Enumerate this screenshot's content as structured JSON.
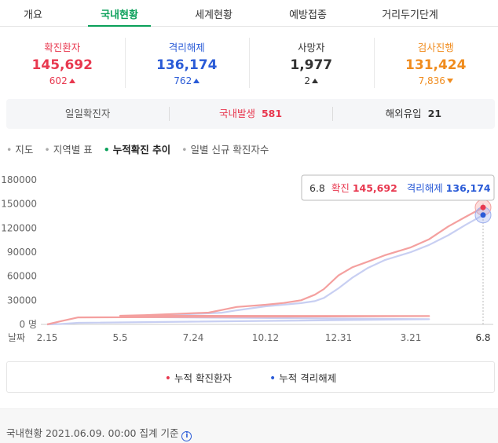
{
  "tabs": [
    {
      "label": "개요",
      "active": false
    },
    {
      "label": "국내현황",
      "active": true
    },
    {
      "label": "세계현황",
      "active": false
    },
    {
      "label": "예방접종",
      "active": false
    },
    {
      "label": "거리두기단계",
      "active": false
    }
  ],
  "stats": [
    {
      "label": "확진환자",
      "value": "145,692",
      "delta": "602",
      "direction": "up",
      "color": "#e8384f"
    },
    {
      "label": "격리해제",
      "value": "136,174",
      "delta": "762",
      "direction": "up",
      "color": "#2a5bd7"
    },
    {
      "label": "사망자",
      "value": "1,977",
      "delta": "2",
      "direction": "up",
      "color": "#333333"
    },
    {
      "label": "검사진행",
      "value": "131,424",
      "delta": "7,836",
      "direction": "down",
      "color": "#f08c1e"
    }
  ],
  "daily": {
    "label": "일일확진자",
    "domestic_label": "국내발생",
    "domestic_value": "581",
    "overseas_label": "해외유입",
    "overseas_value": "21"
  },
  "menu": [
    {
      "label": "지도",
      "active": false
    },
    {
      "label": "지역별 표",
      "active": false
    },
    {
      "label": "누적확진 추이",
      "active": true
    },
    {
      "label": "일별 신규 확진자수",
      "active": false
    }
  ],
  "tooltip": {
    "date": "6.8",
    "confirmed_label": "확진",
    "confirmed_value": "145,692",
    "released_label": "격리해제",
    "released_value": "136,174"
  },
  "chart_data": {
    "type": "line",
    "x_tick_labels": [
      "2.15",
      "5.5",
      "7.24",
      "10.12",
      "12.31",
      "3.21",
      "6.8"
    ],
    "y_tick_labels": [
      "180000",
      "150000",
      "120000",
      "90000",
      "60000",
      "30000",
      "0 명"
    ],
    "x_axis_label": "날짜",
    "ylim": [
      0,
      180000
    ],
    "grid": false,
    "series": [
      {
        "name": "누적 확진환자",
        "color": "#f4a09f",
        "points": [
          {
            "x": "2.15",
            "y": 0
          },
          {
            "x": "3.1",
            "y": 4000
          },
          {
            "x": "3.20",
            "y": 8700
          },
          {
            "x": "4.10",
            "y": 10400
          },
          {
            "x": "5.5",
            "y": 10800
          },
          {
            "x": "6.1",
            "y": 11500
          },
          {
            "x": "7.1",
            "y": 12900
          },
          {
            "x": "7.24",
            "y": 14000
          },
          {
            "x": "8.10",
            "y": 14700
          },
          {
            "x": "8.25",
            "y": 18000
          },
          {
            "x": "9.10",
            "y": 21700
          },
          {
            "x": "10.12",
            "y": 24500
          },
          {
            "x": "11.1",
            "y": 26700
          },
          {
            "x": "11.20",
            "y": 30000
          },
          {
            "x": "12.5",
            "y": 37000
          },
          {
            "x": "12.15",
            "y": 44000
          },
          {
            "x": "12.31",
            "y": 61000
          },
          {
            "x": "1.15",
            "y": 71000
          },
          {
            "x": "2.1",
            "y": 78000
          },
          {
            "x": "2.20",
            "y": 86000
          },
          {
            "x": "3.21",
            "y": 96000
          },
          {
            "x": "4.10",
            "y": 106000
          },
          {
            "x": "5.1",
            "y": 122000
          },
          {
            "x": "5.20",
            "y": 134000
          },
          {
            "x": "6.8",
            "y": 145692
          }
        ]
      },
      {
        "name": "누적 격리해제",
        "color": "#c8cff2",
        "points": [
          {
            "x": "2.15",
            "y": 0
          },
          {
            "x": "3.1",
            "y": 500
          },
          {
            "x": "3.20",
            "y": 2000
          },
          {
            "x": "4.10",
            "y": 6500
          },
          {
            "x": "5.5",
            "y": 9300
          },
          {
            "x": "6.1",
            "y": 10400
          },
          {
            "x": "7.1",
            "y": 11800
          },
          {
            "x": "7.24",
            "y": 13000
          },
          {
            "x": "8.10",
            "y": 13800
          },
          {
            "x": "8.25",
            "y": 14600
          },
          {
            "x": "9.10",
            "y": 17500
          },
          {
            "x": "10.12",
            "y": 22500
          },
          {
            "x": "11.1",
            "y": 24600
          },
          {
            "x": "11.20",
            "y": 26500
          },
          {
            "x": "12.5",
            "y": 29000
          },
          {
            "x": "12.15",
            "y": 33000
          },
          {
            "x": "12.31",
            "y": 45000
          },
          {
            "x": "1.15",
            "y": 58000
          },
          {
            "x": "2.1",
            "y": 70000
          },
          {
            "x": "2.20",
            "y": 80000
          },
          {
            "x": "3.21",
            "y": 90000
          },
          {
            "x": "4.10",
            "y": 99000
          },
          {
            "x": "5.1",
            "y": 111000
          },
          {
            "x": "5.20",
            "y": 124000
          },
          {
            "x": "6.8",
            "y": 136174
          }
        ]
      }
    ]
  },
  "legend": [
    {
      "label": "누적 확진환자",
      "color": "#e8384f"
    },
    {
      "label": "누적 격리해제",
      "color": "#2a5bd7"
    }
  ],
  "footer": {
    "text": "국내현황 2021.06.09. 00:00 집계 기준",
    "icon": "info-icon"
  }
}
